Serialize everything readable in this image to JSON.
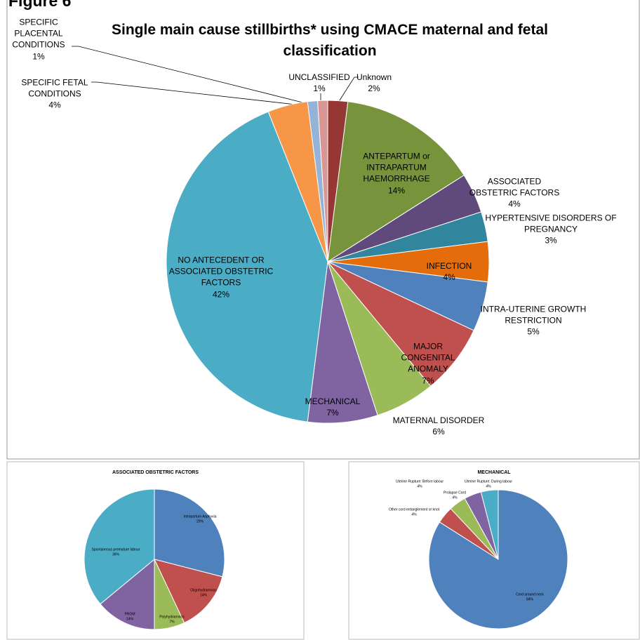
{
  "figure": "Figure 6",
  "chart_data": [
    {
      "type": "pie",
      "title": "Single main cause stillbirths* using CMACE maternal and fetal classification",
      "categories": [
        "Unknown",
        "ANTEPARTUM or INTRAPARTUM HAEMORRHAGE",
        "ASSOCIATED OBSTETRIC FACTORS",
        "HYPERTENSIVE DISORDERS OF PREGNANCY",
        "INFECTION",
        "INTRA-UTERINE GROWTH RESTRICTION",
        "MAJOR CONGENITAL ANOMALY",
        "MATERNAL DISORDER",
        "MECHANICAL",
        "NO ANTECEDENT OR ASSOCIATED OBSTETRIC FACTORS",
        "SPECIFIC FETAL CONDITIONS",
        "SPECIFIC PLACENTAL CONDITIONS",
        "UNCLASSIFIED"
      ],
      "values": [
        2,
        14,
        4,
        3,
        4,
        5,
        7,
        6,
        7,
        42,
        4,
        1,
        1
      ],
      "value_labels": [
        "2%",
        "14%",
        "4%",
        "3%",
        "4%",
        "5%",
        "7%",
        "6%",
        "7%",
        "42%",
        "4%",
        "1%",
        "1%"
      ],
      "colors": [
        "#953735",
        "#77933c",
        "#604a7b",
        "#31859c",
        "#e46c0a",
        "#4f81bd",
        "#c0504d",
        "#9bbb59",
        "#8064a2",
        "#4bacc6",
        "#f79646",
        "#95b3d7",
        "#d99694"
      ]
    },
    {
      "type": "pie",
      "title": "ASSOCIATED OBSTETRIC FACTORS",
      "categories": [
        "Intrapartum Asphyxia",
        "Oligohydramnios",
        "Polyhydramnios",
        "PROM",
        "Spontaneous premature labour"
      ],
      "values": [
        29,
        14,
        7,
        14,
        36
      ],
      "value_labels": [
        "29%",
        "14%",
        "7%",
        "14%",
        "36%"
      ],
      "colors": [
        "#4f81bd",
        "#c0504d",
        "#9bbb59",
        "#8064a2",
        "#4bacc6"
      ]
    },
    {
      "type": "pie",
      "title": "MECHANICAL",
      "categories": [
        "Cord around neck",
        "Other cord entanglement or knot",
        "Prolapse Cord",
        "Uterine Rupture: Before labour",
        "Uterine Rupture: During labour"
      ],
      "values": [
        84,
        4,
        4,
        4,
        4
      ],
      "value_labels": [
        "84%",
        "4%",
        "4%",
        "4%",
        "4%"
      ],
      "colors": [
        "#4f81bd",
        "#c0504d",
        "#9bbb59",
        "#8064a2",
        "#4bacc6"
      ]
    }
  ]
}
